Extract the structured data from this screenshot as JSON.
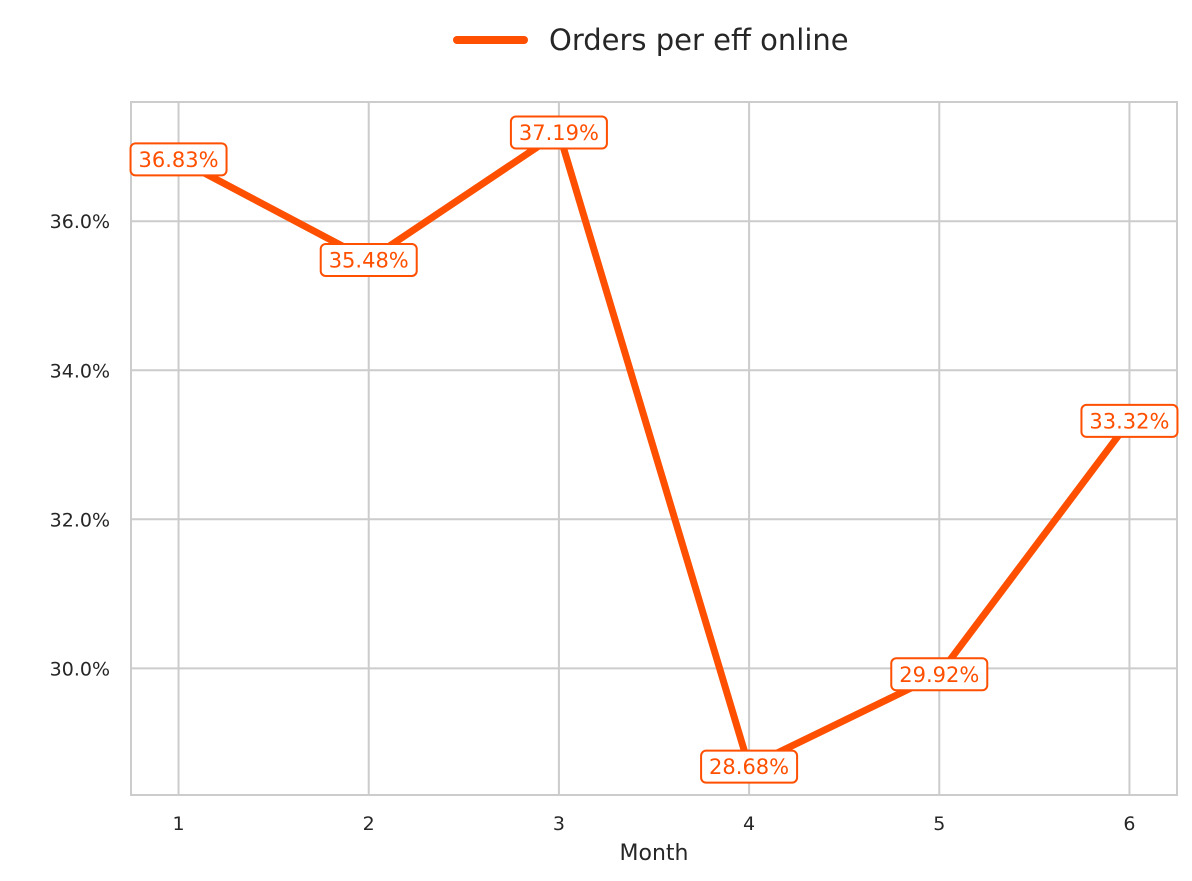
{
  "chart_data": {
    "type": "line",
    "xlabel": "Month",
    "ylabel": "",
    "x": [
      1,
      2,
      3,
      4,
      5,
      6
    ],
    "xlim": [
      0.75,
      6.25
    ],
    "ylim": [
      28.3,
      37.6
    ],
    "yticks": [
      30.0,
      32.0,
      34.0,
      36.0
    ],
    "ytick_labels": [
      "30.0%",
      "32.0%",
      "34.0%",
      "36.0%"
    ],
    "xtick_labels": [
      "1",
      "2",
      "3",
      "4",
      "5",
      "6"
    ],
    "grid": true,
    "legend_position": "top-center",
    "series": [
      {
        "name": "Orders per eff online",
        "color": "#ff4f00",
        "values": [
          36.83,
          35.48,
          37.19,
          28.68,
          29.92,
          33.32
        ],
        "labels": [
          "36.83%",
          "35.48%",
          "37.19%",
          "28.68%",
          "29.92%",
          "33.32%"
        ]
      }
    ]
  }
}
